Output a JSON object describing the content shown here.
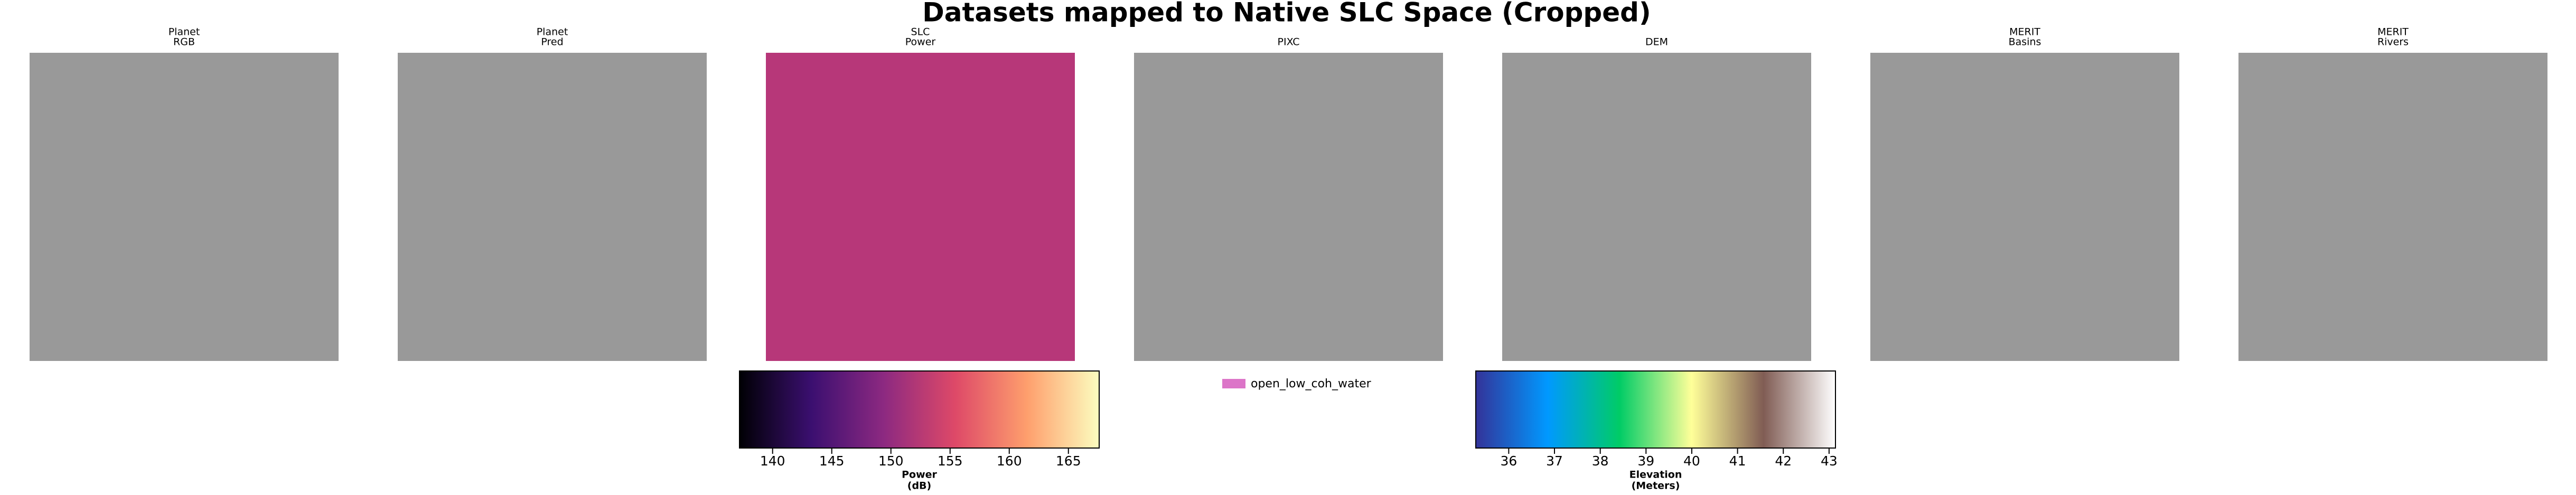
{
  "title": "Datasets mapped to Native SLC Space (Cropped)",
  "chart_data": [
    {
      "type": "image",
      "title": [
        "Planet",
        "RGB"
      ],
      "color": "#999999"
    },
    {
      "type": "image",
      "title": [
        "Planet",
        "Pred"
      ],
      "color": "#999999"
    },
    {
      "type": "image",
      "title": [
        "SLC",
        "Power"
      ],
      "color": "#b73779"
    },
    {
      "type": "image",
      "title": [
        "PIXC"
      ],
      "color": "#999999"
    },
    {
      "type": "image",
      "title": [
        "DEM"
      ],
      "color": "#999999"
    },
    {
      "type": "image",
      "title": [
        "MERIT",
        "Basins"
      ],
      "color": "#999999"
    },
    {
      "type": "image",
      "title": [
        "MERIT",
        "Rivers"
      ],
      "color": "#999999"
    },
    {
      "type": "colorbar",
      "label": [
        "Power",
        "(dB)"
      ],
      "xlim": [
        137.2,
        167.6
      ],
      "xticks": [
        140,
        145,
        150,
        155,
        160,
        165
      ],
      "colors": [
        "#000004",
        "#3b0f70",
        "#8c2981",
        "#de4968",
        "#fe9f6d",
        "#fcfdbf"
      ]
    },
    {
      "type": "legend",
      "labels": [
        "open_low_coh_water"
      ],
      "colors": [
        "#dc75c8"
      ]
    },
    {
      "type": "colorbar",
      "label": [
        "Elevation",
        "(Meters)"
      ],
      "xlim": [
        35.28,
        43.14
      ],
      "xticks": [
        36,
        37,
        38,
        39,
        40,
        41,
        42,
        43
      ],
      "colors": [
        "#333399",
        "#0099ff",
        "#00cc66",
        "#ffff99",
        "#805c54",
        "#ffffff"
      ]
    }
  ]
}
